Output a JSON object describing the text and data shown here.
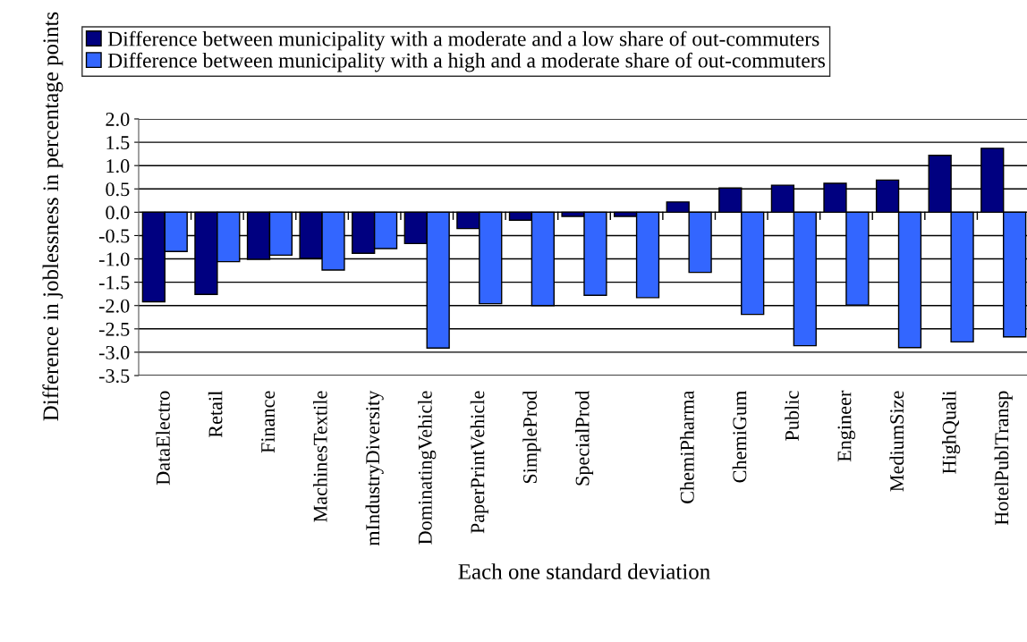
{
  "chart_data": {
    "type": "bar",
    "xlabel": "Each one standard deviation",
    "ylabel": "Difference in joblessness in percentage points",
    "categories": [
      "DataElectro",
      "Retail",
      "Finance",
      "MachinesTextile",
      "mIndustryDiversity",
      "DominatingVehicle",
      "PaperPrintVehicle",
      "SimpleProd",
      "SpecialProd",
      null,
      "ChemiPharma",
      "ChemiGum",
      "Public",
      "Engineer",
      "MediumSize",
      "HighQuali",
      "HotelPublTransp"
    ],
    "series": [
      {
        "name": "Difference between municipality with a moderate and a low share of out-commuters",
        "color": "#000080",
        "values": [
          -1.92,
          -1.76,
          -1.01,
          -0.99,
          -0.88,
          -0.67,
          -0.35,
          -0.17,
          -0.09,
          -0.09,
          0.22,
          0.52,
          0.58,
          0.62,
          0.69,
          1.22,
          1.37
        ]
      },
      {
        "name": "Difference between municipality with a high and a moderate share of out-commuters",
        "color": "#3366ff",
        "values": [
          -0.84,
          -1.06,
          -0.92,
          -1.24,
          -0.78,
          -2.91,
          -1.96,
          -2.0,
          -1.78,
          -1.83,
          -1.29,
          -2.19,
          -2.86,
          -1.99,
          -2.9,
          -2.78,
          -2.67
        ]
      }
    ],
    "ylim": [
      -3.5,
      2.0
    ],
    "yticks": [
      {
        "value": -3.5,
        "label": "-3.5"
      },
      {
        "value": -3.0,
        "label": "-3.0"
      },
      {
        "value": -2.5,
        "label": "-2.5"
      },
      {
        "value": -2.0,
        "label": "-2.0"
      },
      {
        "value": -1.5,
        "label": "-1.5"
      },
      {
        "value": -1.0,
        "label": "-1.0"
      },
      {
        "value": -0.5,
        "label": "-0.5"
      },
      {
        "value": 0.0,
        "label": "0.0"
      },
      {
        "value": 0.5,
        "label": "0.5"
      },
      {
        "value": 1.0,
        "label": "1.0"
      },
      {
        "value": 1.5,
        "label": "1.5"
      },
      {
        "value": 2.0,
        "label": "2.0"
      }
    ],
    "grid": "y",
    "legend": "top"
  }
}
